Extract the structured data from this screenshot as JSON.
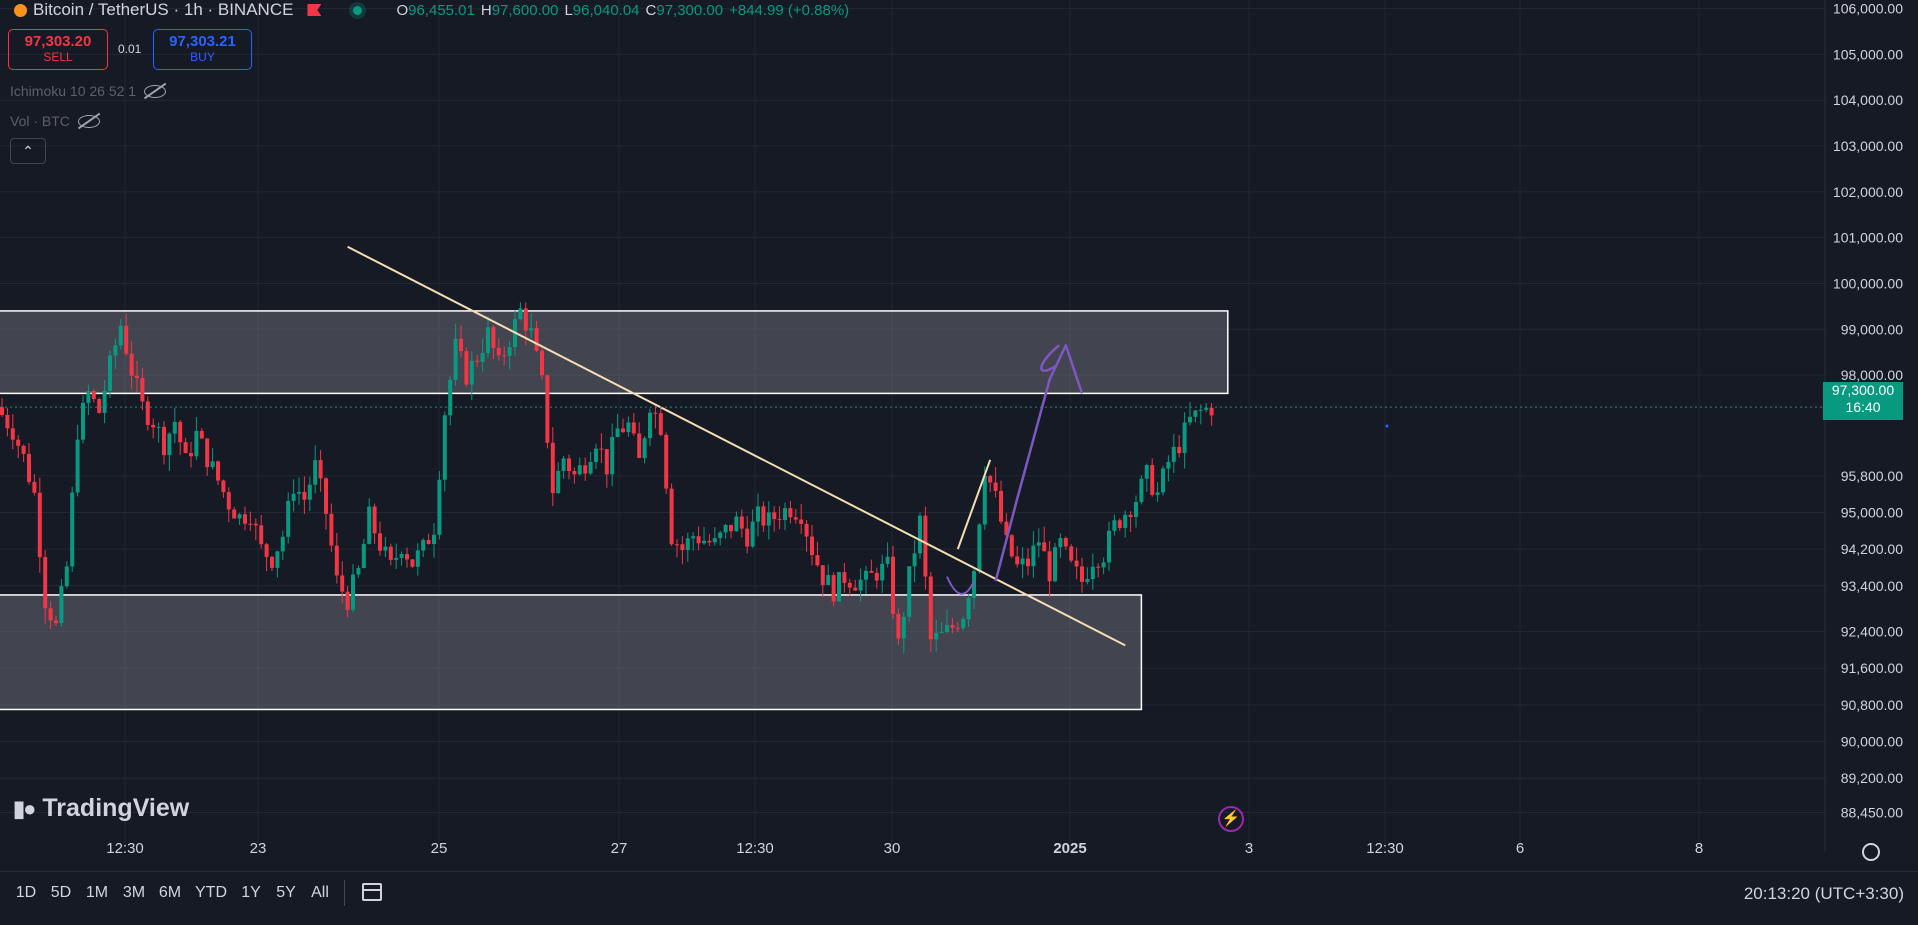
{
  "header": {
    "symbol": "Bitcoin / TetherUS · 1h · BINANCE",
    "open_label": "O",
    "open": "96,455.01",
    "high_label": "H",
    "high": "97,600.00",
    "low_label": "L",
    "low": "96,040.04",
    "close_label": "C",
    "close": "97,300.00",
    "change": "+844.99 (+0.88%)"
  },
  "trade": {
    "sell_price": "97,303.20",
    "sell_label": "SELL",
    "spread": "0.01",
    "buy_price": "97,303.21",
    "buy_label": "BUY"
  },
  "indicators": [
    {
      "label": "Ichimoku 10 26 52 1"
    },
    {
      "label": "Vol · BTC"
    }
  ],
  "logo": "TradingView",
  "last_price": {
    "price": "97,300.00",
    "countdown": "16:40"
  },
  "bottom_bar": {
    "ranges": [
      "1D",
      "5D",
      "1M",
      "3M",
      "6M",
      "YTD",
      "1Y",
      "5Y",
      "All"
    ],
    "clock": "20:13:20 (UTC+3:30)"
  },
  "colors": {
    "up": "#089981",
    "down": "#f23645",
    "trendline": "#f5deb3",
    "arrow": "#7e57c2",
    "zone_border": "#ffffff"
  },
  "chart_data": {
    "type": "candlestick",
    "title": "Bitcoin / TetherUS · 1h · BINANCE",
    "y_axis_ticks": [
      "106,000.00",
      "105,000.00",
      "104,000.00",
      "103,000.00",
      "102,000.00",
      "101,000.00",
      "100,000.00",
      "99,000.00",
      "98,000.00",
      "95,800.00",
      "95,000.00",
      "94,200.00",
      "93,400.00",
      "92,400.00",
      "91,600.00",
      "90,800.00",
      "90,000.00",
      "89,200.00",
      "88,450.00"
    ],
    "x_axis_ticks": [
      {
        "label": "12:30"
      },
      {
        "label": "23"
      },
      {
        "label": "25"
      },
      {
        "label": "27"
      },
      {
        "label": "12:30"
      },
      {
        "label": "30"
      },
      {
        "label": "2025",
        "bold": true
      },
      {
        "label": "3"
      },
      {
        "label": "12:30"
      },
      {
        "label": "6"
      },
      {
        "label": "8"
      }
    ],
    "ylim": [
      88200,
      106100
    ],
    "price_path": [
      [
        -0.5,
        97300
      ],
      [
        1,
        96800
      ],
      [
        2,
        96200
      ],
      [
        3,
        95400
      ],
      [
        4,
        93100
      ],
      [
        5,
        92500
      ],
      [
        6,
        93800
      ],
      [
        7,
        96800
      ],
      [
        8,
        97600
      ],
      [
        9,
        97200
      ],
      [
        10,
        98200
      ],
      [
        11,
        99100
      ],
      [
        12,
        98100
      ],
      [
        13,
        97300
      ],
      [
        14,
        97000
      ],
      [
        15,
        96500
      ],
      [
        16,
        97000
      ],
      [
        17,
        96100
      ],
      [
        18,
        96700
      ],
      [
        19,
        96200
      ],
      [
        20,
        95700
      ],
      [
        21,
        95200
      ],
      [
        22,
        94900
      ],
      [
        23,
        95000
      ],
      [
        24,
        94200
      ],
      [
        25,
        94000
      ],
      [
        26,
        94500
      ],
      [
        27,
        95600
      ],
      [
        28,
        95300
      ],
      [
        29,
        96000
      ],
      [
        30,
        95000
      ],
      [
        31,
        93500
      ],
      [
        32,
        93100
      ],
      [
        33,
        93700
      ],
      [
        34,
        94900
      ],
      [
        35,
        94300
      ],
      [
        36,
        93800
      ],
      [
        37,
        94300
      ],
      [
        38,
        93900
      ],
      [
        39,
        94200
      ],
      [
        40,
        94700
      ],
      [
        41,
        97200
      ],
      [
        42,
        98600
      ],
      [
        43,
        98000
      ],
      [
        44,
        98400
      ],
      [
        45,
        98900
      ],
      [
        46,
        98200
      ],
      [
        47,
        98800
      ],
      [
        48,
        99400
      ],
      [
        49,
        98900
      ],
      [
        50,
        97800
      ],
      [
        51,
        95500
      ],
      [
        52,
        96200
      ],
      [
        53,
        95800
      ],
      [
        54,
        96100
      ],
      [
        55,
        96600
      ],
      [
        56,
        96000
      ],
      [
        57,
        96800
      ],
      [
        58,
        96900
      ],
      [
        59,
        96100
      ],
      [
        60,
        97400
      ],
      [
        61,
        96900
      ],
      [
        62,
        94500
      ],
      [
        63,
        94200
      ],
      [
        64,
        94500
      ],
      [
        65,
        94400
      ],
      [
        66,
        94300
      ],
      [
        67,
        94600
      ],
      [
        68,
        94800
      ],
      [
        69,
        94500
      ],
      [
        70,
        94900
      ],
      [
        71,
        94800
      ],
      [
        72,
        95000
      ],
      [
        73,
        95100
      ],
      [
        74,
        95000
      ],
      [
        75,
        94200
      ],
      [
        76,
        93600
      ],
      [
        77,
        93300
      ],
      [
        78,
        93600
      ],
      [
        79,
        93500
      ],
      [
        80,
        93500
      ],
      [
        81,
        93700
      ],
      [
        82,
        93800
      ],
      [
        83,
        92100
      ],
      [
        84,
        93600
      ],
      [
        85,
        94800
      ],
      [
        86,
        92200
      ],
      [
        87,
        92300
      ],
      [
        88,
        92500
      ],
      [
        89,
        92800
      ],
      [
        90,
        93800
      ],
      [
        91,
        96000
      ],
      [
        92,
        95300
      ],
      [
        93,
        94300
      ],
      [
        94,
        93800
      ],
      [
        95,
        93900
      ],
      [
        96,
        94400
      ],
      [
        97,
        93700
      ],
      [
        98,
        94300
      ],
      [
        99,
        93800
      ],
      [
        100,
        93500
      ],
      [
        101,
        94000
      ],
      [
        102,
        94100
      ],
      [
        103,
        94700
      ],
      [
        104,
        95000
      ],
      [
        105,
        95300
      ],
      [
        106,
        95800
      ],
      [
        107,
        95400
      ],
      [
        108,
        96100
      ],
      [
        109,
        96500
      ],
      [
        110,
        97000
      ],
      [
        111,
        97200
      ],
      [
        112,
        97300
      ]
    ],
    "zones": [
      {
        "from_x": -1,
        "to_x": 113.5,
        "top": 99400,
        "bottom": 97600
      },
      {
        "from_x": -1,
        "to_x": 105.5,
        "top": 93200,
        "bottom": 90700
      }
    ],
    "trendlines": [
      {
        "from": [
          32,
          100800
        ],
        "to": [
          104,
          92100
        ]
      },
      {
        "from": [
          88.5,
          94200
        ],
        "to": [
          91.5,
          96150
        ]
      }
    ],
    "arrow_path": [
      [
        92,
        93500
      ],
      [
        94,
        95300
      ],
      [
        97,
        97900
      ],
      [
        98.5,
        98650
      ],
      [
        100,
        97600
      ]
    ]
  }
}
